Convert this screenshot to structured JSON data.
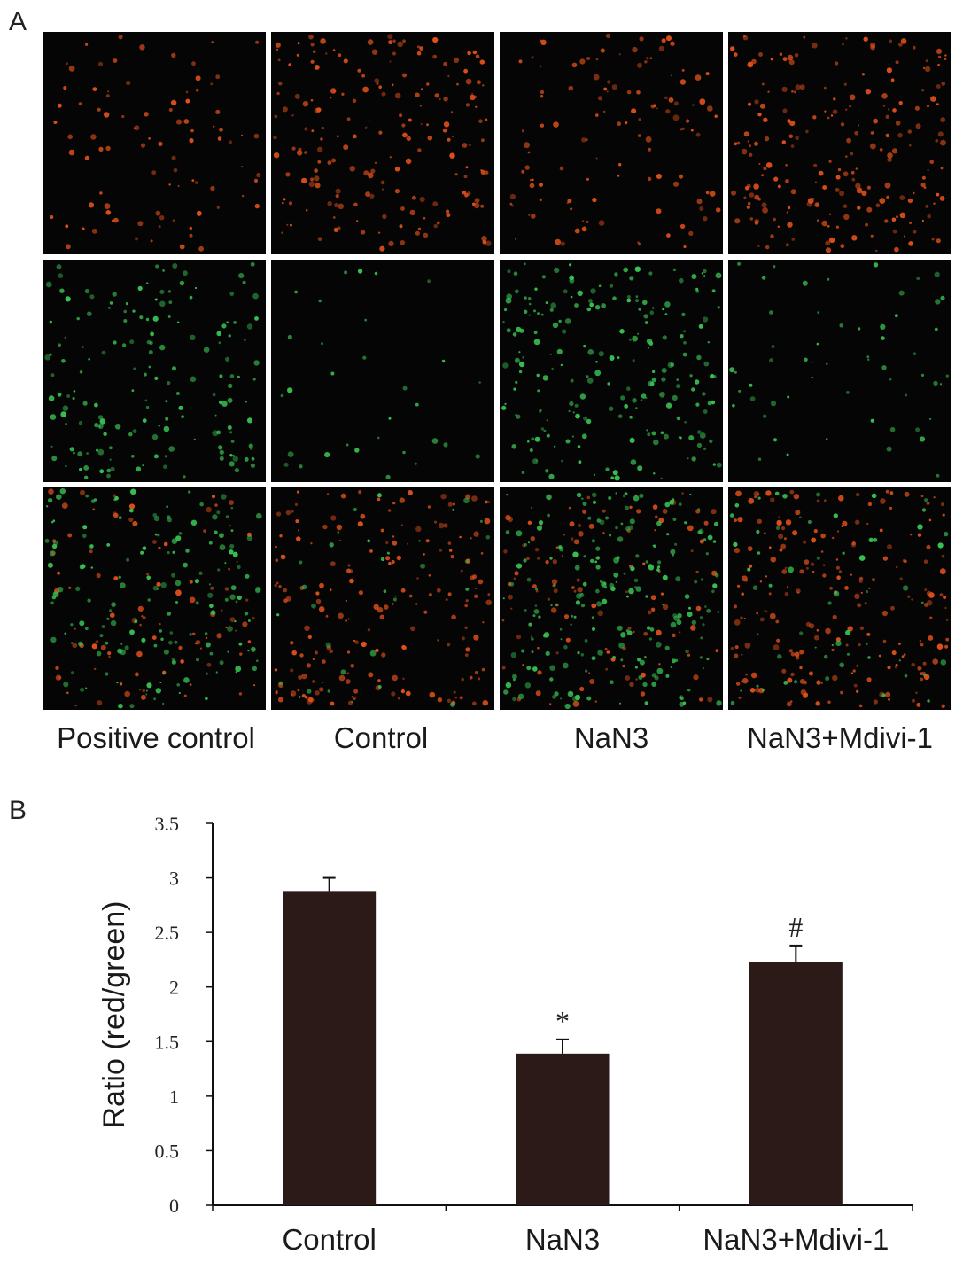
{
  "panel_a": {
    "letter": "A",
    "columns": [
      "Positive control",
      "Control",
      "NaN3",
      "NaN3+Mdivi-1"
    ],
    "rows": [
      {
        "channel": "red",
        "color": "#e0501a",
        "density": [
          0.35,
          0.75,
          0.45,
          0.85
        ]
      },
      {
        "channel": "green",
        "color": "#38c052",
        "density": [
          0.65,
          0.12,
          0.85,
          0.22
        ]
      },
      {
        "channel": "merged",
        "color": "#e0501a",
        "color2": "#38c052",
        "density_red": [
          0.35,
          0.75,
          0.45,
          0.85
        ],
        "density_green": [
          0.65,
          0.12,
          0.85,
          0.22
        ]
      }
    ]
  },
  "panel_b": {
    "letter": "B"
  },
  "chart_data": {
    "type": "bar",
    "categories": [
      "Control",
      "NaN3",
      "NaN3+Mdivi-1"
    ],
    "values": [
      2.88,
      1.39,
      2.23
    ],
    "errors": [
      0.12,
      0.13,
      0.15
    ],
    "markers": [
      "",
      "*",
      "#"
    ],
    "ylabel": "Ratio (red/green)",
    "xlabel": "",
    "ylim": [
      0,
      3.5
    ],
    "yticks": [
      "0",
      "0.5",
      "1",
      "1.5",
      "2",
      "2.5",
      "3",
      "3.5"
    ],
    "bar_color": "#2b1a17",
    "grid": false
  }
}
